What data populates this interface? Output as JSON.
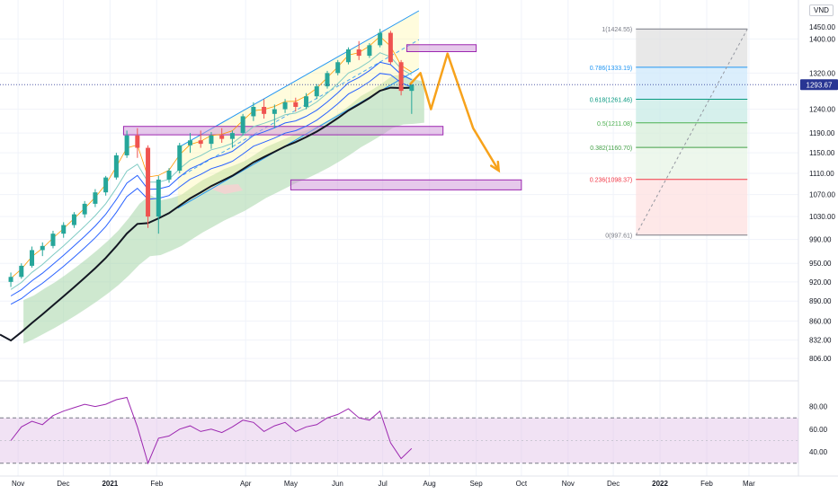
{
  "currency": "VND",
  "colors": {
    "grid": "#f0f3fa",
    "axis_text": "#131722",
    "up": "#26a69a",
    "down": "#ef5350",
    "ma": "#131722",
    "ichimoku": "#a5d6a7",
    "ribbon_outer": "#2962ff",
    "ribbon_inner": "#80cbc4",
    "ribbon_mid": "#ff9800",
    "channel": "#2196f3",
    "channel_fill": "#fff59d",
    "projection": "#f7a21b",
    "zone": "#ce93d8",
    "rsi_line": "#9c27b0",
    "rsi_band": "#e1bee7",
    "last_price": "#283593"
  },
  "price_axis": {
    "ticks": [
      "1400.00",
      "1320.00",
      "1240.00",
      "1190.00",
      "1150.00",
      "1110.00",
      "1070.00",
      "1030.00",
      "990.00",
      "950.00",
      "920.00",
      "890.00",
      "860.00",
      "832.00",
      "806.00"
    ],
    "last_price": "1293.67",
    "partial_top_label": "1450.00"
  },
  "rsi_axis": {
    "ticks": [
      "80.00",
      "60.00",
      "40.00"
    ]
  },
  "time_axis": {
    "labels": [
      "Nov",
      "Dec",
      "2021",
      "Feb",
      "Apr",
      "May",
      "Jun",
      "Jul",
      "Aug",
      "Sep",
      "Oct",
      "Nov",
      "Dec",
      "2022",
      "Feb",
      "Mar"
    ]
  },
  "fib_levels": [
    {
      "label": "1(1424.55)",
      "color": "#787b86"
    },
    {
      "label": "0.786(1333.19)",
      "color": "#2196f3"
    },
    {
      "label": "0.618(1261.46)",
      "color": "#089981"
    },
    {
      "label": "0.5(1211.08)",
      "color": "#4caf50"
    },
    {
      "label": "0.382(1160.70)",
      "color": "#43a047"
    },
    {
      "label": "0.236(1098.37)",
      "color": "#f23645"
    },
    {
      "label": "0(997.61)",
      "color": "#787b86"
    }
  ],
  "chart_data": [
    {
      "type": "candlestick",
      "title": "",
      "currency": "VND",
      "y_scale": "log",
      "x_range": [
        "2020-10-20",
        "2022-03-10"
      ],
      "ylim": [
        790,
        1470
      ],
      "last_price": 1293.67,
      "weekly_ohlc": [
        {
          "date": "2020-10-26",
          "open": 920,
          "high": 935,
          "low": 912,
          "close": 928
        },
        {
          "date": "2020-11-02",
          "open": 928,
          "high": 950,
          "low": 925,
          "close": 946
        },
        {
          "date": "2020-11-09",
          "open": 946,
          "high": 978,
          "low": 943,
          "close": 972
        },
        {
          "date": "2020-11-16",
          "open": 972,
          "high": 985,
          "low": 962,
          "close": 979
        },
        {
          "date": "2020-11-23",
          "open": 979,
          "high": 1005,
          "low": 975,
          "close": 1000
        },
        {
          "date": "2020-11-30",
          "open": 1000,
          "high": 1020,
          "low": 993,
          "close": 1015
        },
        {
          "date": "2020-12-07",
          "open": 1015,
          "high": 1038,
          "low": 1010,
          "close": 1034
        },
        {
          "date": "2020-12-14",
          "open": 1034,
          "high": 1058,
          "low": 1028,
          "close": 1053
        },
        {
          "date": "2020-12-21",
          "open": 1053,
          "high": 1080,
          "low": 1047,
          "close": 1074
        },
        {
          "date": "2020-12-28",
          "open": 1074,
          "high": 1105,
          "low": 1068,
          "close": 1102
        },
        {
          "date": "2021-01-04",
          "open": 1102,
          "high": 1150,
          "low": 1098,
          "close": 1145
        },
        {
          "date": "2021-01-11",
          "open": 1145,
          "high": 1195,
          "low": 1140,
          "close": 1185
        },
        {
          "date": "2021-01-18",
          "open": 1185,
          "high": 1200,
          "low": 1140,
          "close": 1160
        },
        {
          "date": "2021-01-25",
          "open": 1160,
          "high": 1165,
          "low": 1010,
          "close": 1030
        },
        {
          "date": "2021-02-01",
          "open": 1030,
          "high": 1105,
          "low": 1000,
          "close": 1098
        },
        {
          "date": "2021-02-08",
          "open": 1098,
          "high": 1120,
          "low": 1092,
          "close": 1115
        },
        {
          "date": "2021-02-15",
          "open": 1115,
          "high": 1170,
          "low": 1110,
          "close": 1165
        },
        {
          "date": "2021-02-22",
          "open": 1165,
          "high": 1190,
          "low": 1150,
          "close": 1175
        },
        {
          "date": "2021-03-01",
          "open": 1175,
          "high": 1195,
          "low": 1160,
          "close": 1168
        },
        {
          "date": "2021-03-08",
          "open": 1168,
          "high": 1192,
          "low": 1158,
          "close": 1185
        },
        {
          "date": "2021-03-15",
          "open": 1185,
          "high": 1200,
          "low": 1170,
          "close": 1178
        },
        {
          "date": "2021-03-22",
          "open": 1178,
          "high": 1195,
          "low": 1160,
          "close": 1190
        },
        {
          "date": "2021-03-29",
          "open": 1190,
          "high": 1230,
          "low": 1185,
          "close": 1225
        },
        {
          "date": "2021-04-05",
          "open": 1225,
          "high": 1255,
          "low": 1215,
          "close": 1245
        },
        {
          "date": "2021-04-12",
          "open": 1245,
          "high": 1262,
          "low": 1220,
          "close": 1230
        },
        {
          "date": "2021-04-19",
          "open": 1230,
          "high": 1250,
          "low": 1200,
          "close": 1240
        },
        {
          "date": "2021-04-26",
          "open": 1240,
          "high": 1262,
          "low": 1232,
          "close": 1255
        },
        {
          "date": "2021-05-03",
          "open": 1255,
          "high": 1265,
          "low": 1235,
          "close": 1245
        },
        {
          "date": "2021-05-10",
          "open": 1245,
          "high": 1275,
          "low": 1240,
          "close": 1268
        },
        {
          "date": "2021-05-17",
          "open": 1268,
          "high": 1295,
          "low": 1262,
          "close": 1290
        },
        {
          "date": "2021-05-24",
          "open": 1290,
          "high": 1325,
          "low": 1285,
          "close": 1320
        },
        {
          "date": "2021-05-31",
          "open": 1320,
          "high": 1350,
          "low": 1315,
          "close": 1345
        },
        {
          "date": "2021-06-07",
          "open": 1345,
          "high": 1380,
          "low": 1340,
          "close": 1375
        },
        {
          "date": "2021-06-14",
          "open": 1375,
          "high": 1395,
          "low": 1350,
          "close": 1360
        },
        {
          "date": "2021-06-21",
          "open": 1360,
          "high": 1390,
          "low": 1355,
          "close": 1385
        },
        {
          "date": "2021-06-28",
          "open": 1385,
          "high": 1425,
          "low": 1380,
          "close": 1415
        },
        {
          "date": "2021-07-05",
          "open": 1415,
          "high": 1420,
          "low": 1340,
          "close": 1345
        },
        {
          "date": "2021-07-12",
          "open": 1345,
          "high": 1350,
          "low": 1270,
          "close": 1280
        },
        {
          "date": "2021-07-19",
          "open": 1280,
          "high": 1295,
          "low": 1230,
          "close": 1294
        }
      ],
      "projection_path": [
        {
          "date": "2021-07-19",
          "value": 1294
        },
        {
          "date": "2021-07-26",
          "value": 1320
        },
        {
          "date": "2021-08-02",
          "value": 1240
        },
        {
          "date": "2021-08-13",
          "value": 1365
        },
        {
          "date": "2021-08-30",
          "value": 1200
        },
        {
          "date": "2021-09-16",
          "value": 1115
        }
      ],
      "zones": [
        {
          "from": "2021-01-10",
          "to": "2021-08-10",
          "low": 1190,
          "high": 1200
        },
        {
          "from": "2021-07-17",
          "to": "2021-09-01",
          "low": 1374,
          "high": 1382
        },
        {
          "from": "2021-05-01",
          "to": "2021-10-01",
          "low": 1082,
          "high": 1094
        }
      ],
      "fibonacci": {
        "from_date": "2021-12-16",
        "to_date": "2022-02-28",
        "levels": [
          {
            "ratio": 1,
            "price": 1424.55
          },
          {
            "ratio": 0.786,
            "price": 1333.19
          },
          {
            "ratio": 0.618,
            "price": 1261.46
          },
          {
            "ratio": 0.5,
            "price": 1211.08
          },
          {
            "ratio": 0.382,
            "price": 1160.7
          },
          {
            "ratio": 0.236,
            "price": 1098.37
          },
          {
            "ratio": 0,
            "price": 997.61
          }
        ]
      }
    },
    {
      "type": "line",
      "title": "",
      "ylim": [
        25,
        90
      ],
      "bands": [
        30,
        70
      ],
      "series": [
        {
          "x": [
            "2020-10-26",
            "2020-11-02",
            "2020-11-09",
            "2020-11-16",
            "2020-11-23",
            "2020-11-30",
            "2020-12-07",
            "2020-12-14",
            "2020-12-21",
            "2020-12-28",
            "2021-01-04",
            "2021-01-11",
            "2021-01-18",
            "2021-01-25",
            "2021-02-01",
            "2021-02-08",
            "2021-02-15",
            "2021-02-22",
            "2021-03-01",
            "2021-03-08",
            "2021-03-15",
            "2021-03-22",
            "2021-03-29",
            "2021-04-05",
            "2021-04-12",
            "2021-04-19",
            "2021-04-26",
            "2021-05-03",
            "2021-05-10",
            "2021-05-17",
            "2021-05-24",
            "2021-05-31",
            "2021-06-07",
            "2021-06-14",
            "2021-06-21",
            "2021-06-28",
            "2021-07-05",
            "2021-07-12",
            "2021-07-19"
          ],
          "values": [
            50,
            62,
            67,
            64,
            72,
            76,
            79,
            82,
            80,
            82,
            86,
            88,
            62,
            30,
            52,
            54,
            60,
            63,
            58,
            60,
            57,
            62,
            68,
            66,
            58,
            63,
            66,
            58,
            62,
            64,
            70,
            73,
            78,
            70,
            68,
            76,
            48,
            34,
            43
          ]
        }
      ]
    }
  ]
}
